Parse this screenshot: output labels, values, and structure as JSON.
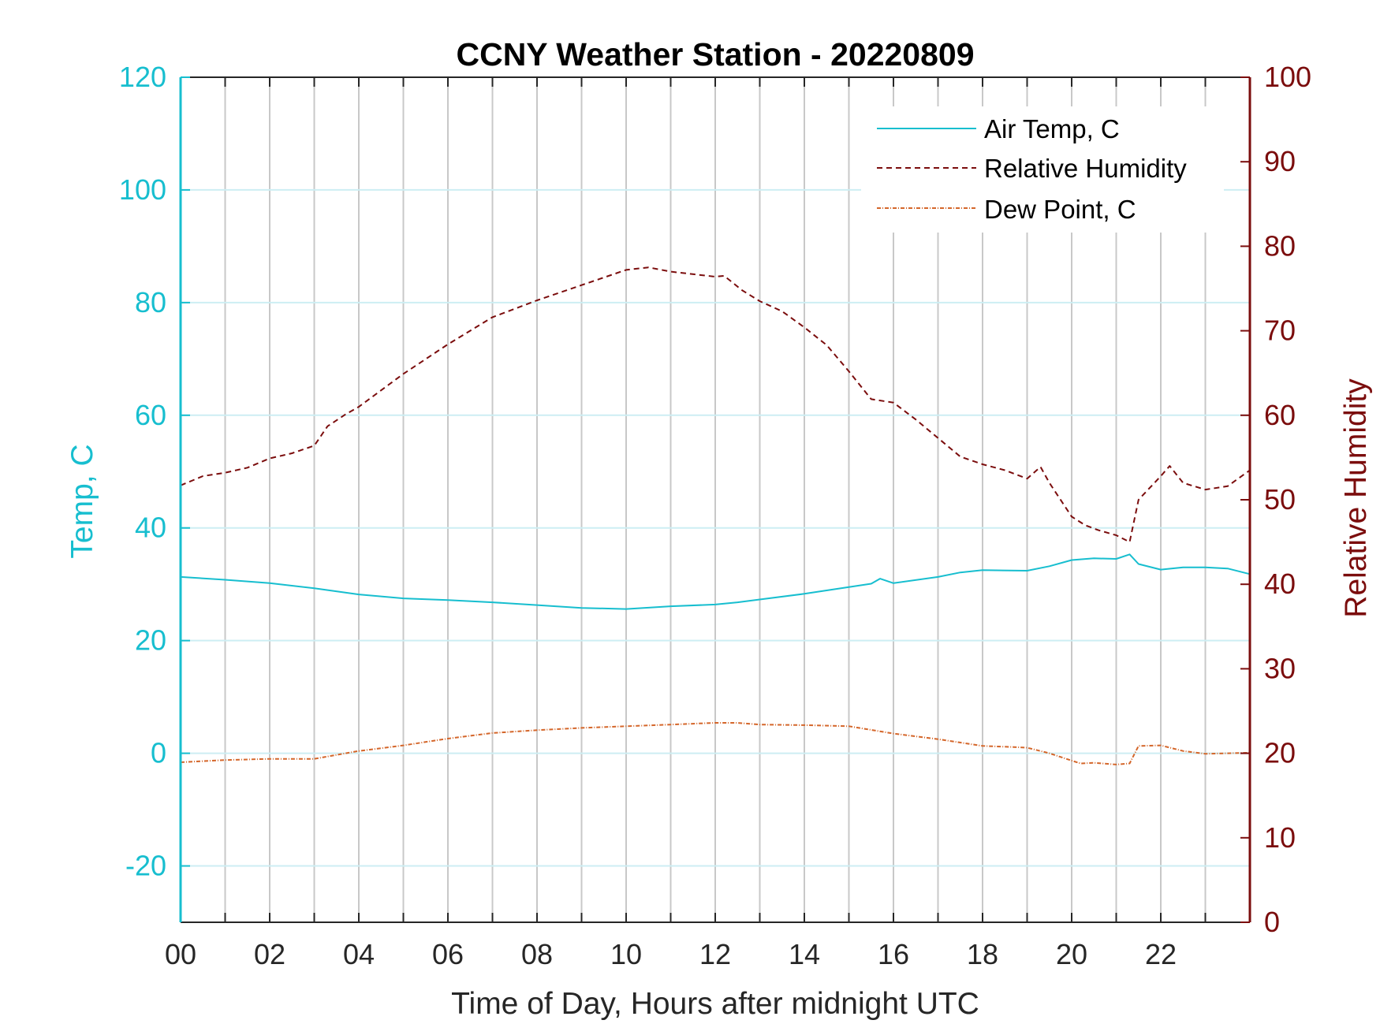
{
  "colors": {
    "temp": "#17becf",
    "humidity": "#7b0d0d",
    "dewpoint": "#d4662a",
    "grid_v": "#c8c8c8",
    "grid_h": "#cdeef3",
    "axis_x": "#262626"
  },
  "chart_data": {
    "type": "line",
    "title": "CCNY Weather Station - 20220809",
    "xlabel": "Time of Day, Hours after midnight UTC",
    "ylabel_left": "Temp, C",
    "ylabel_right": "Relative Humidity",
    "xlim": [
      0,
      24
    ],
    "ylim_left": [
      -30,
      120
    ],
    "ylim_right": [
      0,
      100
    ],
    "x_ticks": [
      0,
      2,
      4,
      6,
      8,
      10,
      12,
      14,
      16,
      18,
      20,
      22
    ],
    "x_tick_labels": [
      "00",
      "02",
      "04",
      "06",
      "08",
      "10",
      "12",
      "14",
      "16",
      "18",
      "20",
      "22"
    ],
    "y_ticks_left": [
      -20,
      0,
      20,
      40,
      60,
      80,
      100,
      120
    ],
    "y_tick_labels_left": [
      "-20",
      "0",
      "20",
      "40",
      "60",
      "80",
      "100",
      "120"
    ],
    "y_ticks_right": [
      0,
      10,
      20,
      30,
      40,
      50,
      60,
      70,
      80,
      90,
      100
    ],
    "y_tick_labels_right": [
      "0",
      "10",
      "20",
      "30",
      "40",
      "50",
      "60",
      "70",
      "80",
      "90",
      "100"
    ],
    "grid": "on",
    "legend_position": "top-right",
    "series": [
      {
        "name": "Air Temp, C",
        "axis": "left",
        "style": "solid",
        "x": [
          0,
          1,
          2,
          3,
          4,
          5,
          6,
          7,
          8,
          9,
          10,
          11,
          12,
          12.5,
          13,
          14,
          15,
          15.5,
          15.7,
          16,
          17,
          17.5,
          18,
          19,
          19.5,
          20,
          20.5,
          21,
          21.3,
          21.5,
          22,
          22.5,
          23,
          23.5,
          24
        ],
        "y": [
          31.3,
          30.8,
          30.2,
          29.3,
          28.2,
          27.5,
          27.2,
          26.8,
          26.3,
          25.8,
          25.6,
          26.1,
          26.4,
          26.8,
          27.3,
          28.3,
          29.5,
          30.1,
          31.0,
          30.2,
          31.3,
          32.1,
          32.5,
          32.4,
          33.2,
          34.3,
          34.6,
          34.5,
          35.3,
          33.6,
          32.6,
          33.0,
          33.0,
          32.8,
          31.8
        ]
      },
      {
        "name": "Relative Humidity",
        "axis": "right",
        "style": "dashed",
        "x": [
          0,
          0.5,
          1,
          1.5,
          2,
          2.5,
          3,
          3.3,
          3.7,
          4,
          5,
          6,
          7,
          8,
          9,
          10,
          10.5,
          11,
          12,
          12.2,
          12.6,
          13,
          13.5,
          14,
          14.5,
          15,
          15.5,
          16,
          16.5,
          17,
          17.5,
          18,
          18.5,
          19,
          19.3,
          19.5,
          20,
          20.3,
          20.6,
          21,
          21.3,
          21.5,
          22,
          22.2,
          22.5,
          23,
          23.5,
          24
        ],
        "y": [
          51.7,
          52.8,
          53.2,
          53.8,
          54.9,
          55.5,
          56.4,
          58.7,
          60.1,
          61.0,
          64.9,
          68.4,
          71.6,
          73.6,
          75.4,
          77.2,
          77.5,
          77.0,
          76.4,
          76.5,
          74.8,
          73.5,
          72.3,
          70.4,
          68.3,
          65.2,
          61.9,
          61.5,
          59.5,
          57.3,
          55.1,
          54.2,
          53.5,
          52.5,
          53.9,
          52.0,
          48.0,
          47.0,
          46.4,
          45.8,
          45.0,
          50.0,
          52.8,
          54.0,
          52.0,
          51.2,
          51.6,
          53.5
        ]
      },
      {
        "name": "Dew Point, C",
        "axis": "left",
        "style": "dash-dot",
        "x": [
          0,
          1,
          2,
          3,
          4,
          5,
          6,
          7,
          8,
          9,
          10,
          11,
          12,
          12.5,
          13,
          14,
          15,
          16,
          17,
          18,
          18.7,
          19,
          19.5,
          20,
          20.2,
          20.5,
          21,
          21.3,
          21.5,
          22,
          22.5,
          23,
          24
        ],
        "y": [
          -1.6,
          -1.2,
          -1.0,
          -1.0,
          0.4,
          1.4,
          2.6,
          3.6,
          4.1,
          4.5,
          4.8,
          5.1,
          5.4,
          5.4,
          5.1,
          5.0,
          4.8,
          3.5,
          2.5,
          1.3,
          1.1,
          1.0,
          0.0,
          -1.3,
          -1.8,
          -1.7,
          -2.0,
          -1.8,
          1.3,
          1.4,
          0.4,
          -0.1,
          0.1
        ]
      }
    ]
  }
}
